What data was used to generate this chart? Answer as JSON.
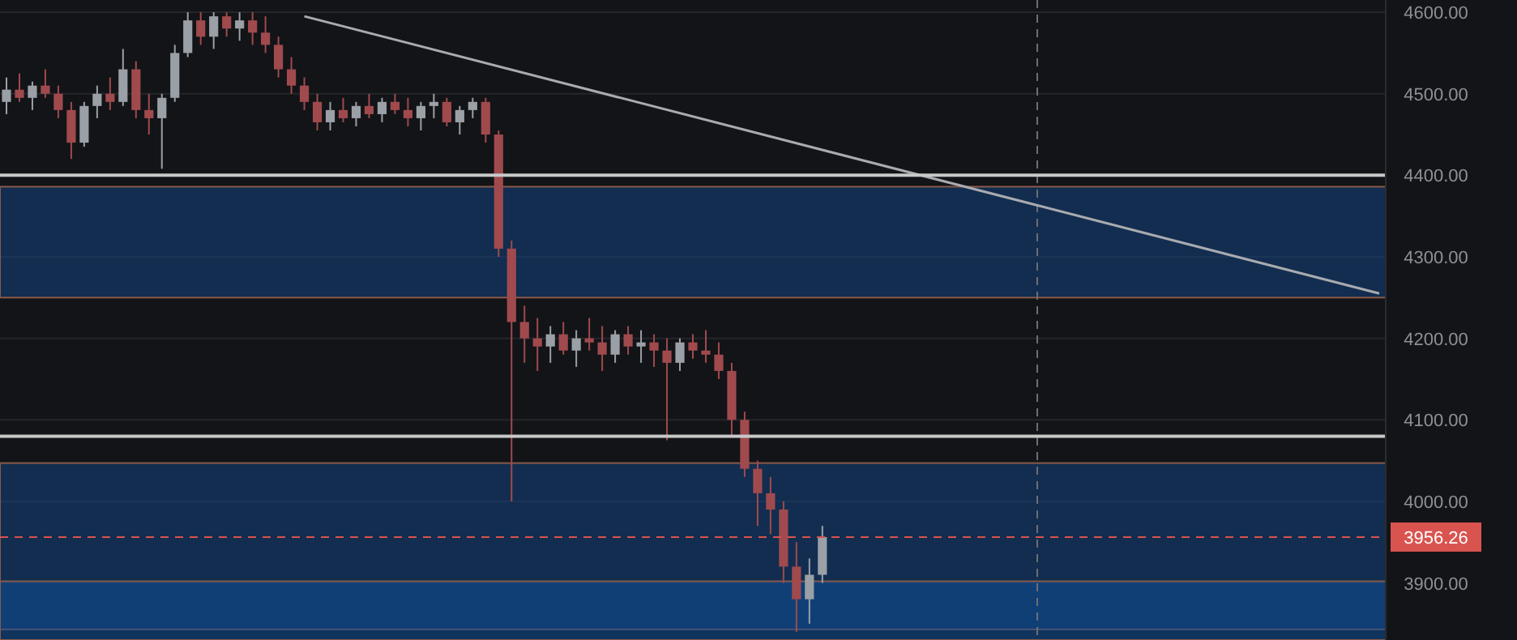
{
  "chart_data": {
    "type": "candlestick",
    "categories": [
      null,
      null,
      null,
      null,
      null,
      null,
      null,
      null,
      null,
      null,
      null,
      null,
      null,
      null,
      null,
      null,
      null,
      null,
      null,
      null,
      null,
      null,
      null,
      null,
      null,
      null,
      null,
      null,
      null,
      null,
      null,
      null,
      null,
      null,
      null,
      null,
      null,
      null,
      null,
      null,
      null,
      null,
      null,
      null,
      null,
      null,
      null,
      null,
      null,
      null,
      null,
      null,
      null,
      null,
      null,
      null,
      null,
      null,
      null,
      null,
      null,
      null,
      null,
      null,
      null,
      null,
      null,
      null,
      null,
      null,
      null,
      null,
      null,
      null,
      null,
      null,
      null,
      null,
      null,
      null,
      null,
      null,
      null,
      null,
      null,
      null,
      null,
      null,
      null,
      null,
      null,
      null,
      null,
      null,
      null,
      null,
      null,
      null,
      null,
      null,
      null,
      null,
      null,
      null,
      null,
      null,
      null
    ],
    "ohlc": [
      [
        4490,
        4520,
        4475,
        4505
      ],
      [
        4505,
        4525,
        4490,
        4495
      ],
      [
        4495,
        4515,
        4480,
        4510
      ],
      [
        4510,
        4530,
        4495,
        4500
      ],
      [
        4500,
        4510,
        4470,
        4480
      ],
      [
        4480,
        4490,
        4420,
        4440
      ],
      [
        4440,
        4490,
        4435,
        4485
      ],
      [
        4485,
        4510,
        4470,
        4500
      ],
      [
        4500,
        4520,
        4480,
        4490
      ],
      [
        4490,
        4555,
        4485,
        4530
      ],
      [
        4530,
        4540,
        4470,
        4480
      ],
      [
        4480,
        4500,
        4450,
        4470
      ],
      [
        4470,
        4500,
        4408,
        4495
      ],
      [
        4495,
        4560,
        4490,
        4550
      ],
      [
        4550,
        4600,
        4545,
        4590
      ],
      [
        4590,
        4600,
        4560,
        4570
      ],
      [
        4570,
        4600,
        4555,
        4595
      ],
      [
        4595,
        4600,
        4570,
        4580
      ],
      [
        4580,
        4600,
        4565,
        4590
      ],
      [
        4590,
        4600,
        4560,
        4575
      ],
      [
        4575,
        4595,
        4550,
        4560
      ],
      [
        4560,
        4570,
        4520,
        4530
      ],
      [
        4530,
        4545,
        4500,
        4510
      ],
      [
        4510,
        4520,
        4480,
        4490
      ],
      [
        4490,
        4500,
        4455,
        4465
      ],
      [
        4465,
        4490,
        4455,
        4480
      ],
      [
        4480,
        4495,
        4465,
        4470
      ],
      [
        4470,
        4490,
        4460,
        4485
      ],
      [
        4485,
        4500,
        4470,
        4475
      ],
      [
        4475,
        4495,
        4465,
        4490
      ],
      [
        4490,
        4500,
        4475,
        4480
      ],
      [
        4480,
        4495,
        4460,
        4470
      ],
      [
        4470,
        4490,
        4455,
        4485
      ],
      [
        4485,
        4500,
        4470,
        4490
      ],
      [
        4490,
        4495,
        4460,
        4465
      ],
      [
        4465,
        4485,
        4450,
        4480
      ],
      [
        4480,
        4495,
        4470,
        4490
      ],
      [
        4490,
        4495,
        4440,
        4450
      ],
      [
        4450,
        4455,
        4300,
        4310
      ],
      [
        4310,
        4320,
        4000,
        4220
      ],
      [
        4220,
        4240,
        4170,
        4200
      ],
      [
        4200,
        4225,
        4160,
        4190
      ],
      [
        4190,
        4215,
        4170,
        4205
      ],
      [
        4205,
        4220,
        4180,
        4185
      ],
      [
        4185,
        4210,
        4165,
        4200
      ],
      [
        4200,
        4225,
        4185,
        4195
      ],
      [
        4195,
        4215,
        4160,
        4180
      ],
      [
        4180,
        4210,
        4170,
        4205
      ],
      [
        4205,
        4215,
        4180,
        4190
      ],
      [
        4190,
        4210,
        4170,
        4195
      ],
      [
        4195,
        4205,
        4165,
        4185
      ],
      [
        4185,
        4200,
        4075,
        4170
      ],
      [
        4170,
        4200,
        4160,
        4195
      ],
      [
        4195,
        4205,
        4175,
        4185
      ],
      [
        4185,
        4210,
        4170,
        4180
      ],
      [
        4180,
        4195,
        4150,
        4160
      ],
      [
        4160,
        4170,
        4080,
        4100
      ],
      [
        4100,
        4110,
        4030,
        4040
      ],
      [
        4040,
        4050,
        3970,
        4010
      ],
      [
        4010,
        4030,
        3960,
        3990
      ],
      [
        3990,
        4000,
        3900,
        3920
      ],
      [
        3920,
        3950,
        3840,
        3880
      ],
      [
        3880,
        3930,
        3850,
        3910
      ],
      [
        3910,
        3970,
        3900,
        3956.26
      ],
      null,
      null,
      null,
      null,
      null,
      null,
      null,
      null,
      null,
      null,
      null,
      null,
      null,
      null,
      null,
      null,
      null,
      null,
      null,
      null,
      null,
      null,
      null,
      null,
      null,
      null,
      null,
      null,
      null,
      null,
      null,
      null,
      null,
      null,
      null,
      null,
      null,
      null,
      null,
      null,
      null,
      null,
      null
    ],
    "series": [
      {
        "type": "line",
        "color": "#a9abb0",
        "values": [
          null,
          null,
          null,
          null,
          null,
          null,
          null,
          null,
          null,
          null,
          null,
          null,
          null,
          null,
          null,
          null,
          null,
          null,
          null,
          null,
          null,
          null,
          null,
          4595,
          null,
          null,
          null,
          null,
          null,
          null,
          null,
          null,
          null,
          null,
          null,
          null,
          null,
          null,
          null,
          null,
          null,
          null,
          null,
          null,
          null,
          null,
          null,
          null,
          null,
          null,
          null,
          null,
          null,
          null,
          null,
          null,
          null,
          null,
          null,
          null,
          null,
          null,
          null,
          null,
          null,
          null,
          null,
          null,
          null,
          null,
          null,
          null,
          null,
          null,
          null,
          null,
          null,
          null,
          null,
          null,
          null,
          null,
          null,
          null,
          null,
          null,
          null,
          null,
          null,
          null,
          null,
          null,
          null,
          null,
          null,
          null,
          null,
          null,
          null,
          null,
          null,
          null,
          null,
          null,
          null,
          null,
          4255
        ]
      }
    ],
    "ylim": [
      3830,
      4615
    ],
    "yticks": [
      {
        "value": 3900,
        "label": "3900.00"
      },
      {
        "value": 4000,
        "label": "4000.00"
      },
      {
        "value": 4100,
        "label": "4100.00"
      },
      {
        "value": 4200,
        "label": "4200.00"
      },
      {
        "value": 4300,
        "label": "4300.00"
      },
      {
        "value": 4400,
        "label": "4400.00"
      },
      {
        "value": 4500,
        "label": "4500.00"
      },
      {
        "value": 4600,
        "label": "4600.00"
      }
    ],
    "tick_labels": "y",
    "grid": "y",
    "ref_lines": [
      {
        "axis": "y",
        "value": 4400,
        "color": "#c8c8c8",
        "line_style": "solid"
      },
      {
        "axis": "y",
        "value": 4080,
        "color": "#c8c8c8",
        "line_style": "solid"
      },
      {
        "axis": "y",
        "value": 3956.26,
        "label": "3956.26",
        "color": "#d9534f",
        "line_style": "dashed"
      }
    ],
    "bands": [
      {
        "axis": "y",
        "from": 4250,
        "to": 4386,
        "color": "#12427e"
      },
      {
        "axis": "y",
        "from": 3843,
        "to": 4047,
        "color": "#12427e"
      },
      {
        "axis": "y",
        "from": 3830,
        "to": 3902,
        "color": "#0f4f97"
      }
    ]
  }
}
